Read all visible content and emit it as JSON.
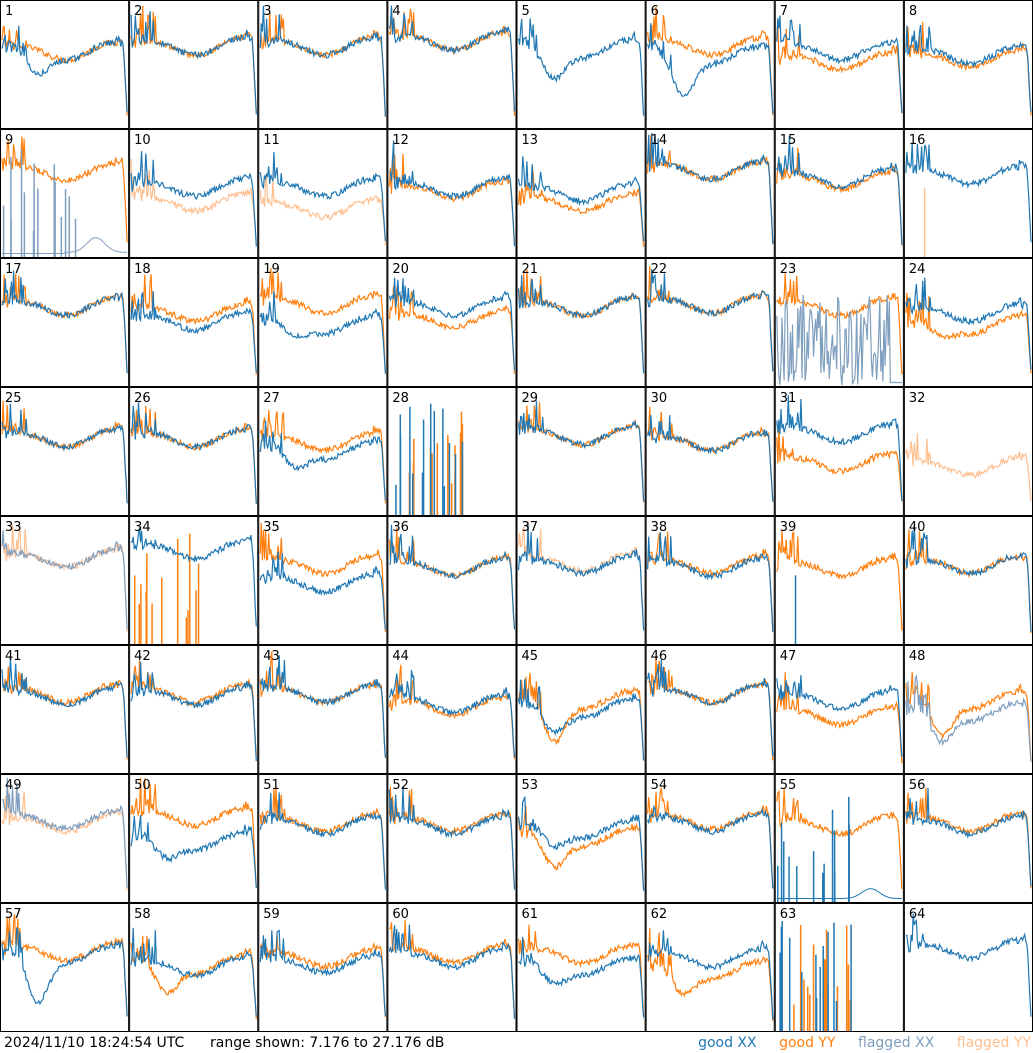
{
  "footer": {
    "timestamp": "2024/11/10 18:24:54 UTC",
    "range": "range shown: 7.176 to 27.176 dB"
  },
  "legend": [
    {
      "label": "good XX",
      "color": "#1f77b4"
    },
    {
      "label": "good YY",
      "color": "#ff7f0e"
    },
    {
      "label": "flagged XX",
      "color": "#7f9fbf"
    },
    {
      "label": "flagged YY",
      "color": "#ffbf8f"
    }
  ],
  "chart_data": {
    "type": "line",
    "layout": "8x8 grid of antenna spectra",
    "ylim": [
      7.176,
      27.176
    ],
    "y_unit": "dB",
    "series_names": [
      "good XX",
      "good YY",
      "flagged XX",
      "flagged YY"
    ],
    "panels": [
      {
        "id": "1",
        "xx": "good",
        "yy": "good",
        "xx_shape": "dip",
        "yy_shape": "flat",
        "xx_level": 0.58,
        "yy_level": 0.58,
        "xx_dip": 0.2
      },
      {
        "id": "2",
        "xx": "good",
        "yy": "good",
        "xx_shape": "flat",
        "yy_shape": "flat",
        "xx_level": 0.62,
        "yy_level": 0.62
      },
      {
        "id": "3",
        "xx": "good",
        "yy": "good",
        "xx_shape": "flat",
        "yy_shape": "flat",
        "xx_level": 0.62,
        "yy_level": 0.62
      },
      {
        "id": "4",
        "xx": "good",
        "yy": "good",
        "xx_shape": "flat",
        "yy_shape": "flat",
        "xx_level": 0.66,
        "yy_level": 0.66
      },
      {
        "id": "5",
        "xx": "good",
        "yy": "none",
        "xx_shape": "dip",
        "yy_shape": "none",
        "xx_level": 0.6,
        "yy_level": 0,
        "xx_dip": 0.25
      },
      {
        "id": "6",
        "xx": "good",
        "yy": "good",
        "xx_shape": "dip",
        "yy_shape": "flat",
        "xx_level": 0.55,
        "yy_level": 0.62,
        "xx_dip": 0.35
      },
      {
        "id": "7",
        "xx": "good",
        "yy": "good",
        "xx_shape": "flat",
        "yy_shape": "flat",
        "xx_level": 0.58,
        "yy_level": 0.5
      },
      {
        "id": "8",
        "xx": "good",
        "yy": "good",
        "xx_shape": "flat",
        "yy_shape": "flat",
        "xx_level": 0.55,
        "yy_level": 0.52
      },
      {
        "id": "9",
        "xx": "flagged",
        "yy": "good",
        "xx_shape": "spikes",
        "yy_shape": "flat",
        "xx_level": 0.15,
        "yy_level": 0.65
      },
      {
        "id": "10",
        "xx": "good",
        "yy": "flagged",
        "xx_shape": "flat",
        "yy_shape": "flat",
        "xx_level": 0.52,
        "yy_level": 0.4
      },
      {
        "id": "11",
        "xx": "good",
        "yy": "flagged",
        "xx_shape": "flat",
        "yy_shape": "flat",
        "xx_level": 0.52,
        "yy_level": 0.35
      },
      {
        "id": "12",
        "xx": "good",
        "yy": "good",
        "xx_shape": "flat",
        "yy_shape": "flat",
        "xx_level": 0.52,
        "yy_level": 0.5
      },
      {
        "id": "13",
        "xx": "good",
        "yy": "good",
        "xx_shape": "flat",
        "yy_shape": "flat",
        "xx_level": 0.48,
        "yy_level": 0.4
      },
      {
        "id": "14",
        "xx": "good",
        "yy": "good",
        "xx_shape": "flat",
        "yy_shape": "flat",
        "xx_level": 0.66,
        "yy_level": 0.66
      },
      {
        "id": "15",
        "xx": "good",
        "yy": "good",
        "xx_shape": "flat",
        "yy_shape": "flat",
        "xx_level": 0.6,
        "yy_level": 0.58
      },
      {
        "id": "16",
        "xx": "good",
        "yy": "flagged",
        "xx_shape": "flat",
        "yy_shape": "spike",
        "xx_level": 0.62,
        "yy_level": 0
      },
      {
        "id": "17",
        "xx": "good",
        "yy": "good",
        "xx_shape": "flat",
        "yy_shape": "flat",
        "xx_level": 0.6,
        "yy_level": 0.6
      },
      {
        "id": "18",
        "xx": "good",
        "yy": "good",
        "xx_shape": "flat",
        "yy_shape": "flat",
        "xx_level": 0.48,
        "yy_level": 0.55
      },
      {
        "id": "19",
        "xx": "good",
        "yy": "good",
        "xx_shape": "dip",
        "yy_shape": "flat",
        "xx_level": 0.45,
        "yy_level": 0.62,
        "xx_dip": 0.1
      },
      {
        "id": "20",
        "xx": "good",
        "yy": "good",
        "xx_shape": "flat",
        "yy_shape": "flat",
        "xx_level": 0.6,
        "yy_level": 0.5
      },
      {
        "id": "21",
        "xx": "good",
        "yy": "good",
        "xx_shape": "flat",
        "yy_shape": "flat",
        "xx_level": 0.6,
        "yy_level": 0.6
      },
      {
        "id": "22",
        "xx": "good",
        "yy": "good",
        "xx_shape": "flat",
        "yy_shape": "flat",
        "xx_level": 0.62,
        "yy_level": 0.62
      },
      {
        "id": "23",
        "xx": "flagged",
        "yy": "good",
        "xx_shape": "noise",
        "yy_shape": "flat",
        "xx_level": 0.3,
        "yy_level": 0.6
      },
      {
        "id": "24",
        "xx": "good",
        "yy": "good",
        "xx_shape": "flat",
        "yy_shape": "dip",
        "xx_level": 0.55,
        "yy_level": 0.45,
        "yy_dip": 0.1
      },
      {
        "id": "25",
        "xx": "good",
        "yy": "good",
        "xx_shape": "flat",
        "yy_shape": "flat",
        "xx_level": 0.58,
        "yy_level": 0.58
      },
      {
        "id": "26",
        "xx": "good",
        "yy": "good",
        "xx_shape": "flat",
        "yy_shape": "flat",
        "xx_level": 0.58,
        "yy_level": 0.58
      },
      {
        "id": "27",
        "xx": "good",
        "yy": "good",
        "xx_shape": "dip",
        "yy_shape": "flat",
        "xx_level": 0.48,
        "yy_level": 0.55,
        "xx_dip": 0.15
      },
      {
        "id": "28",
        "xx": "good",
        "yy": "good",
        "xx_shape": "spikes",
        "yy_shape": "spikes",
        "xx_level": 0,
        "yy_level": 0
      },
      {
        "id": "29",
        "xx": "good",
        "yy": "good",
        "xx_shape": "flat",
        "yy_shape": "flat",
        "xx_level": 0.6,
        "yy_level": 0.6
      },
      {
        "id": "30",
        "xx": "good",
        "yy": "good",
        "xx_shape": "flat",
        "yy_shape": "flat",
        "xx_level": 0.55,
        "yy_level": 0.55
      },
      {
        "id": "31",
        "xx": "good",
        "yy": "good",
        "xx_shape": "flat",
        "yy_shape": "flat",
        "xx_level": 0.62,
        "yy_level": 0.38
      },
      {
        "id": "32",
        "xx": "none",
        "yy": "flagged",
        "xx_shape": "none",
        "yy_shape": "flat",
        "xx_level": 0,
        "yy_level": 0.35
      },
      {
        "id": "33",
        "xx": "flagged",
        "yy": "flagged",
        "xx_shape": "flat",
        "yy_shape": "flat",
        "xx_level": 0.65,
        "yy_level": 0.65
      },
      {
        "id": "34",
        "xx": "good",
        "yy": "good",
        "xx_shape": "flat",
        "yy_shape": "spikes",
        "xx_level": 0.72,
        "yy_level": 0
      },
      {
        "id": "35",
        "xx": "good",
        "yy": "good",
        "xx_shape": "flat",
        "yy_shape": "flat",
        "xx_level": 0.45,
        "yy_level": 0.6
      },
      {
        "id": "36",
        "xx": "good",
        "yy": "good",
        "xx_shape": "flat",
        "yy_shape": "flat",
        "xx_level": 0.58,
        "yy_level": 0.58
      },
      {
        "id": "37",
        "xx": "good",
        "yy": "flagged",
        "xx_shape": "flat",
        "yy_shape": "flat",
        "xx_level": 0.6,
        "yy_level": 0.62
      },
      {
        "id": "38",
        "xx": "good",
        "yy": "good",
        "xx_shape": "flat",
        "yy_shape": "flat",
        "xx_level": 0.58,
        "yy_level": 0.6
      },
      {
        "id": "39",
        "xx": "good",
        "yy": "good",
        "xx_shape": "spike",
        "yy_shape": "flat",
        "xx_level": 0,
        "yy_level": 0.58
      },
      {
        "id": "40",
        "xx": "good",
        "yy": "good",
        "xx_shape": "flat",
        "yy_shape": "flat",
        "xx_level": 0.6,
        "yy_level": 0.6
      },
      {
        "id": "41",
        "xx": "good",
        "yy": "good",
        "xx_shape": "flat",
        "yy_shape": "flat",
        "xx_level": 0.58,
        "yy_level": 0.6
      },
      {
        "id": "42",
        "xx": "good",
        "yy": "good",
        "xx_shape": "flat",
        "yy_shape": "flat",
        "xx_level": 0.58,
        "yy_level": 0.6
      },
      {
        "id": "43",
        "xx": "good",
        "yy": "good",
        "xx_shape": "flat",
        "yy_shape": "flat",
        "xx_level": 0.6,
        "yy_level": 0.6
      },
      {
        "id": "44",
        "xx": "good",
        "yy": "good",
        "xx_shape": "flat",
        "yy_shape": "flat",
        "xx_level": 0.52,
        "yy_level": 0.5
      },
      {
        "id": "45",
        "xx": "good",
        "yy": "good",
        "xx_shape": "dip",
        "yy_shape": "dip",
        "xx_level": 0.48,
        "yy_level": 0.55,
        "xx_dip": 0.2,
        "yy_dip": 0.35
      },
      {
        "id": "46",
        "xx": "good",
        "yy": "good",
        "xx_shape": "flat",
        "yy_shape": "flat",
        "xx_level": 0.6,
        "yy_level": 0.6
      },
      {
        "id": "47",
        "xx": "good",
        "yy": "good",
        "xx_shape": "flat",
        "yy_shape": "flat",
        "xx_level": 0.55,
        "yy_level": 0.42
      },
      {
        "id": "48",
        "xx": "flagged",
        "yy": "good",
        "xx_shape": "dip",
        "yy_shape": "dip",
        "xx_level": 0.45,
        "yy_level": 0.55,
        "xx_dip": 0.25,
        "yy_dip": 0.3
      },
      {
        "id": "49",
        "xx": "flagged",
        "yy": "flagged",
        "xx_shape": "flat",
        "yy_shape": "flat",
        "xx_level": 0.62,
        "yy_level": 0.6
      },
      {
        "id": "50",
        "xx": "good",
        "yy": "good",
        "xx_shape": "dip",
        "yy_shape": "flat",
        "xx_level": 0.45,
        "yy_level": 0.65,
        "xx_dip": 0.15
      },
      {
        "id": "51",
        "xx": "good",
        "yy": "good",
        "xx_shape": "flat",
        "yy_shape": "flat",
        "xx_level": 0.58,
        "yy_level": 0.6
      },
      {
        "id": "52",
        "xx": "good",
        "yy": "good",
        "xx_shape": "flat",
        "yy_shape": "flat",
        "xx_level": 0.58,
        "yy_level": 0.6
      },
      {
        "id": "53",
        "xx": "good",
        "yy": "good",
        "xx_shape": "dip",
        "yy_shape": "dip",
        "xx_level": 0.55,
        "yy_level": 0.48,
        "xx_dip": 0.15,
        "yy_dip": 0.25
      },
      {
        "id": "54",
        "xx": "good",
        "yy": "good",
        "xx_shape": "flat",
        "yy_shape": "flat",
        "xx_level": 0.6,
        "yy_level": 0.62
      },
      {
        "id": "55",
        "xx": "good",
        "yy": "good",
        "xx_shape": "spikes",
        "yy_shape": "flat",
        "xx_level": 0.1,
        "yy_level": 0.58
      },
      {
        "id": "56",
        "xx": "good",
        "yy": "good",
        "xx_shape": "flat",
        "yy_shape": "flat",
        "xx_level": 0.58,
        "yy_level": 0.6
      },
      {
        "id": "57",
        "xx": "good",
        "yy": "good",
        "xx_shape": "dip",
        "yy_shape": "flat",
        "xx_level": 0.58,
        "yy_level": 0.6,
        "xx_dip": 0.4
      },
      {
        "id": "58",
        "xx": "good",
        "yy": "good",
        "xx_shape": "flat",
        "yy_shape": "dip",
        "xx_level": 0.48,
        "yy_level": 0.5,
        "yy_dip": 0.25
      },
      {
        "id": "59",
        "xx": "good",
        "yy": "good",
        "xx_shape": "flat",
        "yy_shape": "flat",
        "xx_level": 0.5,
        "yy_level": 0.55
      },
      {
        "id": "60",
        "xx": "good",
        "yy": "good",
        "xx_shape": "flat",
        "yy_shape": "flat",
        "xx_level": 0.55,
        "yy_level": 0.58
      },
      {
        "id": "61",
        "xx": "good",
        "yy": "good",
        "xx_shape": "dip",
        "yy_shape": "flat",
        "xx_level": 0.48,
        "yy_level": 0.58,
        "xx_dip": 0.15
      },
      {
        "id": "62",
        "xx": "good",
        "yy": "good",
        "xx_shape": "flat",
        "yy_shape": "dip",
        "xx_level": 0.55,
        "yy_level": 0.45,
        "yy_dip": 0.2
      },
      {
        "id": "63",
        "xx": "good",
        "yy": "good",
        "xx_shape": "spikes",
        "yy_shape": "spikes",
        "xx_level": 0,
        "yy_level": 0
      },
      {
        "id": "64",
        "xx": "good",
        "yy": "none",
        "xx_shape": "flat",
        "yy_shape": "none",
        "xx_level": 0.62,
        "yy_level": 0
      }
    ]
  }
}
